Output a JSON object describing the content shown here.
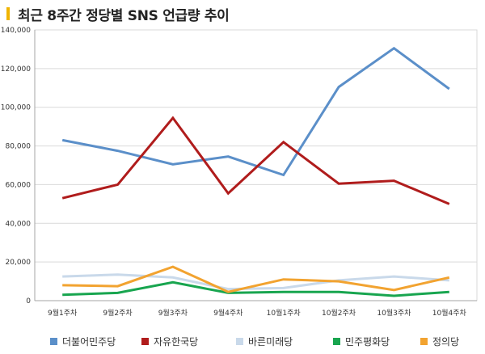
{
  "title": "최근 8주간 정당별 SNS 언급량 추이",
  "chart_data": {
    "type": "line",
    "categories": [
      "9월1주차",
      "9월2주차",
      "9월3주차",
      "9월4주차",
      "10월1주차",
      "10월2주차",
      "10월3주차",
      "10월4주차"
    ],
    "ylim": [
      0,
      140000
    ],
    "yticks": [
      "0",
      "20,000",
      "40,000",
      "60,000",
      "80,000",
      "100,000",
      "120,000",
      "140,000"
    ],
    "grid": true,
    "legend_position": "bottom",
    "series": [
      {
        "name": "더불어민주당",
        "color": "#5b8fc9",
        "values": [
          83000,
          77500,
          70500,
          74500,
          65000,
          110500,
          130500,
          109500
        ]
      },
      {
        "name": "자유한국당",
        "color": "#b01c1c",
        "values": [
          53000,
          60000,
          94500,
          55500,
          82000,
          60500,
          62000,
          50000
        ]
      },
      {
        "name": "바른미래당",
        "color": "#c9d9ea",
        "values": [
          12500,
          13500,
          12000,
          6000,
          6500,
          10500,
          12500,
          10500
        ]
      },
      {
        "name": "민주평화당",
        "color": "#18a54f",
        "values": [
          3000,
          4000,
          9500,
          4000,
          4500,
          4500,
          2500,
          4500
        ]
      },
      {
        "name": "정의당",
        "color": "#f2a330",
        "values": [
          8000,
          7500,
          17500,
          4500,
          11000,
          10000,
          5500,
          12000
        ]
      }
    ]
  }
}
